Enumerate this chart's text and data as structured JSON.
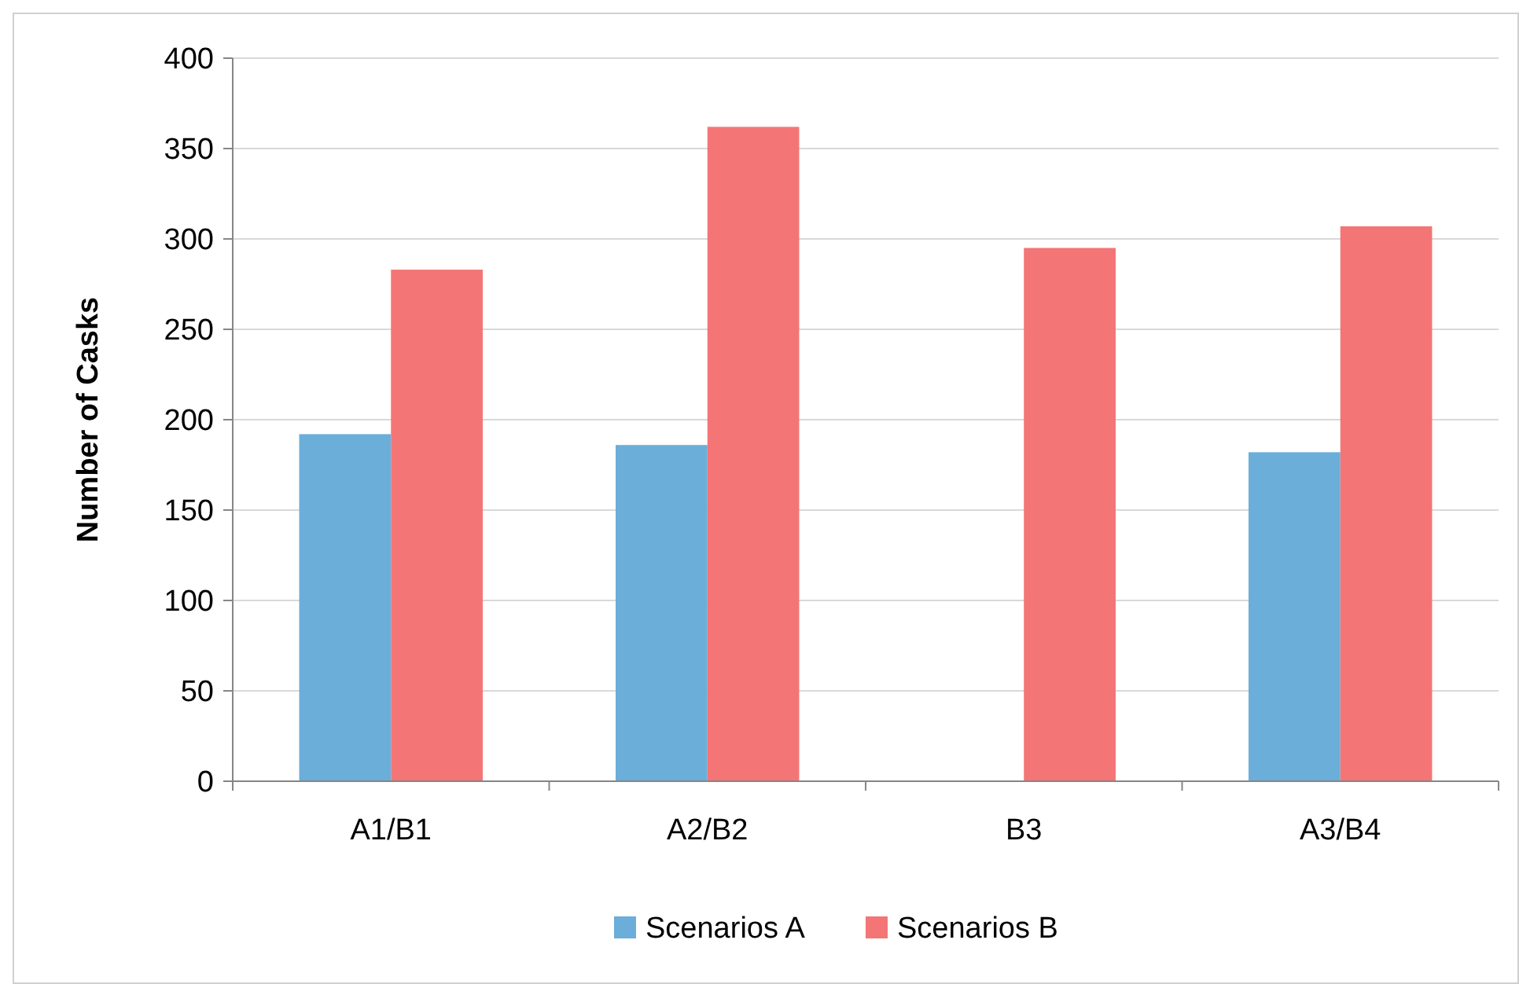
{
  "chart_data": {
    "type": "bar",
    "ylabel": "Number of Casks",
    "categories": [
      "A1/B1",
      "A2/B2",
      "B3",
      "A3/B4"
    ],
    "series": [
      {
        "name": "Scenarios A",
        "color": "#6baed9",
        "values": [
          192,
          186,
          null,
          182
        ]
      },
      {
        "name": "Scenarios B",
        "color": "#f47575",
        "values": [
          283,
          362,
          295,
          307
        ]
      }
    ],
    "ylim": [
      0,
      400
    ],
    "yticks": [
      0,
      50,
      100,
      150,
      200,
      250,
      300,
      350,
      400
    ],
    "grid": "y",
    "legend": "bottom"
  }
}
